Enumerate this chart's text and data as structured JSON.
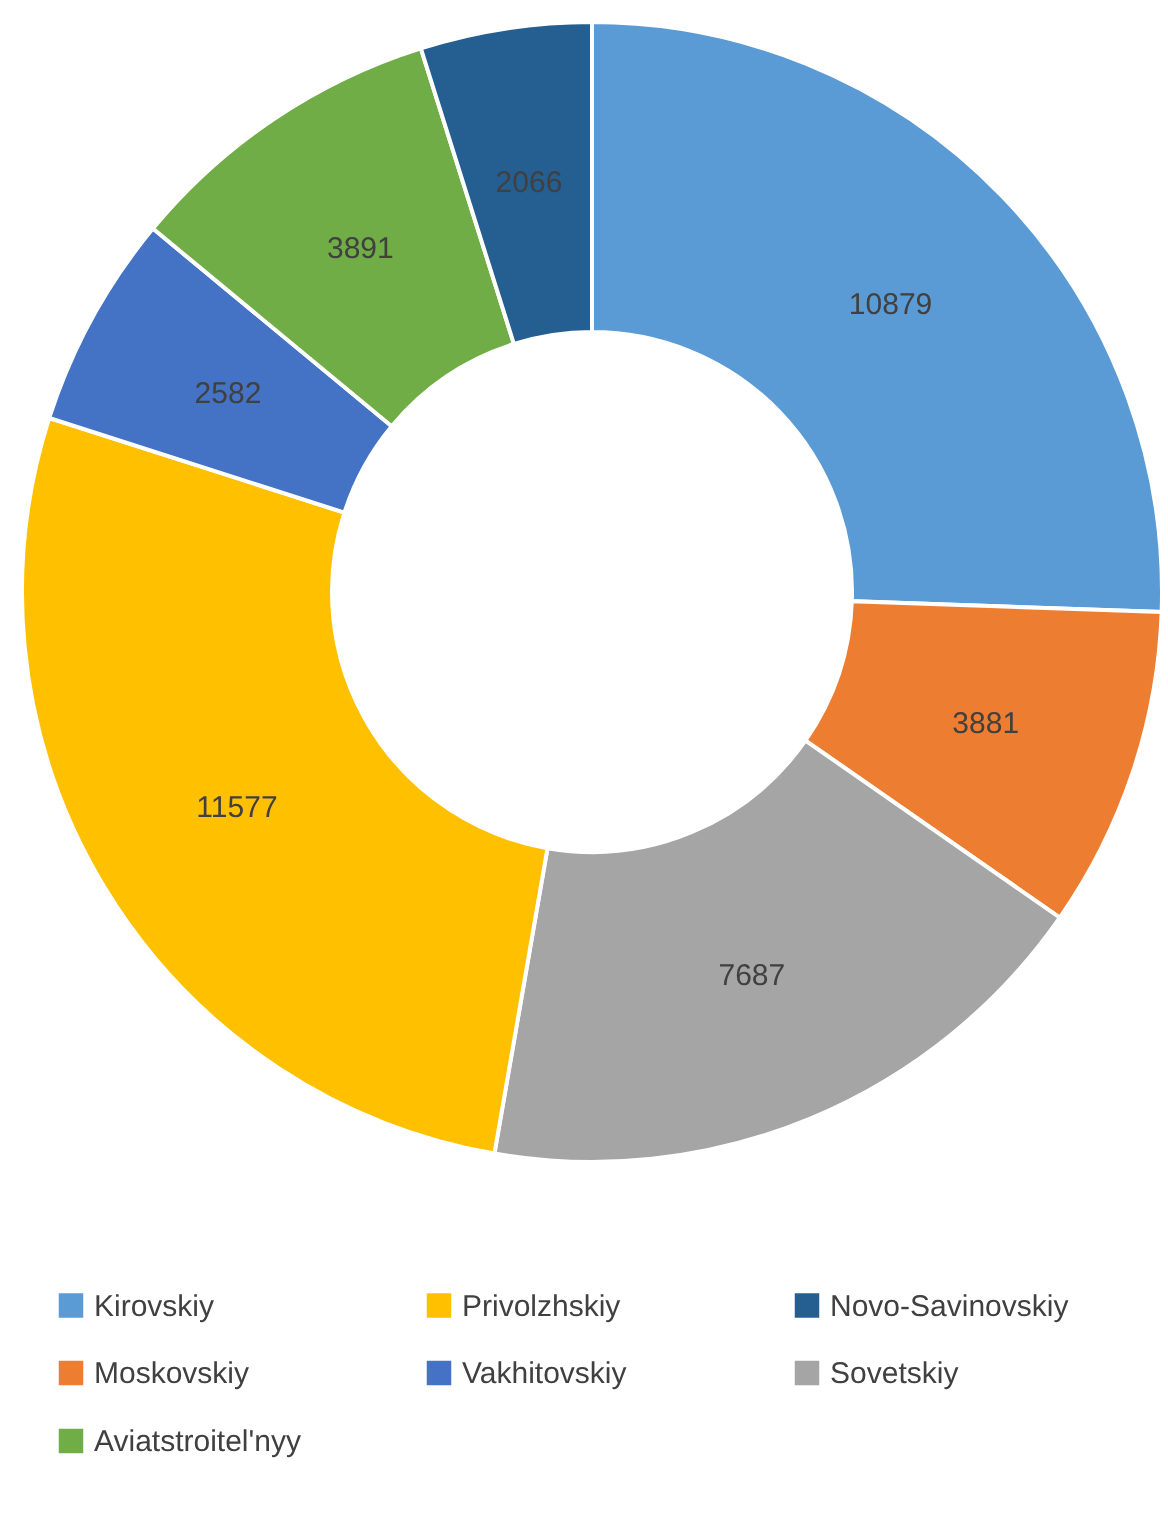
{
  "chart_data": {
    "type": "donut",
    "categories": [
      "Kirovskiy",
      "Moskovskiy",
      "Sovetskiy",
      "Privolzhskiy",
      "Vakhitovskiy",
      "Aviatstroitel'nyy",
      "Novo-Savinovskiy"
    ],
    "values": [
      10879,
      3881,
      7687,
      11577,
      2582,
      3891,
      2066
    ],
    "colors": [
      "#5b9bd5",
      "#ed7d31",
      "#a5a5a5",
      "#ffc000",
      "#4472c4",
      "#70ad47",
      "#255e91"
    ],
    "data_labels": true,
    "legend": "bottom"
  }
}
